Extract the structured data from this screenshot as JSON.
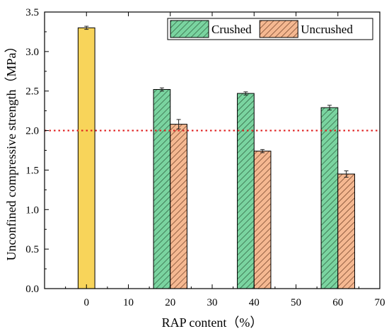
{
  "chart_data": {
    "type": "bar",
    "xlabel": "RAP content（%）",
    "ylabel": "Unconfined compressive strength（MPa）",
    "xlim": [
      -10,
      70
    ],
    "ylim": [
      0.0,
      3.5
    ],
    "x_ticks": [
      "0",
      "10",
      "20",
      "30",
      "40",
      "50",
      "60",
      "70"
    ],
    "y_ticks": [
      "0.0",
      "0.5",
      "1.0",
      "1.5",
      "2.0",
      "2.5",
      "3.0",
      "3.5"
    ],
    "grid": false,
    "legend_position": "top-right",
    "reference_line": {
      "y": 2.0,
      "style": "dotted",
      "color": "#e02020"
    },
    "series": [
      {
        "name": "",
        "color": "#f8d45a",
        "pattern": "solid",
        "points": [
          {
            "x": 0,
            "value": 3.3,
            "error": 0.02
          }
        ]
      },
      {
        "name": "Crushed",
        "color": "#7ad4a0",
        "pattern": "diagonal-hatch",
        "points": [
          {
            "x": 20,
            "value": 2.52,
            "error": 0.02
          },
          {
            "x": 40,
            "value": 2.47,
            "error": 0.02
          },
          {
            "x": 60,
            "value": 2.29,
            "error": 0.03
          }
        ]
      },
      {
        "name": "Uncrushed",
        "color": "#f5b891",
        "pattern": "diagonal-hatch",
        "points": [
          {
            "x": 20,
            "value": 2.08,
            "error": 0.06
          },
          {
            "x": 40,
            "value": 1.74,
            "error": 0.02
          },
          {
            "x": 60,
            "value": 1.45,
            "error": 0.04
          }
        ]
      }
    ]
  }
}
